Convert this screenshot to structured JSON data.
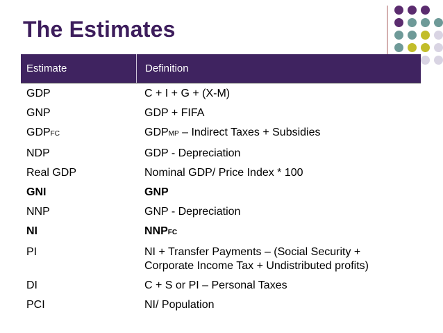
{
  "slide": {
    "title": "The Estimates"
  },
  "decoration": {
    "dot_colors": {
      "purple": "#5b2c6f",
      "teal": "#6e9a98",
      "olive": "#c2bd2a",
      "lavender": "#d9d4e3"
    }
  },
  "table": {
    "headers": {
      "col1": "Estimate",
      "col2": "Definition"
    },
    "rows": [
      {
        "estimate": "GDP",
        "definition": "C + I + G + (X-M)"
      },
      {
        "estimate": "GNP",
        "definition": "GDP + FIFA"
      },
      {
        "estimate": "GDP",
        "estimate_sub": "FC",
        "definition_pre": "GDP",
        "definition_sub": "MP",
        "definition": " – Indirect Taxes + Subsidies"
      },
      {
        "estimate": "NDP",
        "definition": "GDP - Depreciation"
      },
      {
        "estimate": "Real GDP",
        "definition": "Nominal GDP/ Price Index * 100"
      },
      {
        "estimate": "GNI",
        "definition": "GNP",
        "bold": true
      },
      {
        "estimate": "NNP",
        "definition": "GNP - Depreciation"
      },
      {
        "estimate": "NI",
        "definition_pre": "NNP",
        "definition_sub": "FC",
        "definition": "",
        "bold": true
      },
      {
        "estimate": "PI",
        "definition": "NI + Transfer Payments – (Social Security + Corporate Income Tax + Undistributed profits)"
      },
      {
        "estimate": "DI",
        "definition": "C + S or PI – Personal Taxes"
      },
      {
        "estimate": "PCI",
        "definition": "NI/ Population"
      }
    ]
  }
}
